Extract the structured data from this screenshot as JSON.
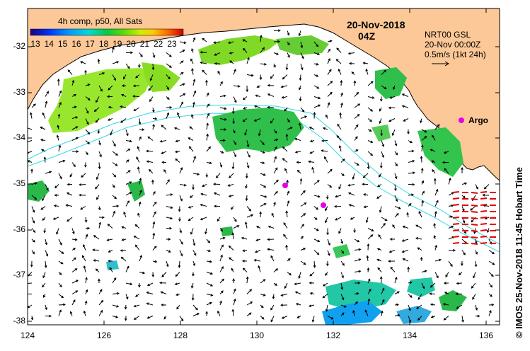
{
  "title": {
    "date": "20-Nov-2018",
    "time": "04Z"
  },
  "legend": {
    "title": "4h comp, p50, All Sats",
    "sst_ticks": [
      "13",
      "14",
      "15",
      "16",
      "17",
      "18",
      "19",
      "20",
      "21",
      "22",
      "23"
    ]
  },
  "current_key": {
    "line1": "NRT00 GSL",
    "line2": "20-Nov 00:00Z",
    "line3": "0.5m/s (1kt 24h)"
  },
  "argo_label": "Argo",
  "credit": "© IMOS 25-Nov-2018 11:45 Hobart Time",
  "axes": {
    "lon_ticks": [
      "124",
      "126",
      "128",
      "130",
      "132",
      "134",
      "136"
    ],
    "lat_ticks": [
      "-32",
      "-33",
      "-34",
      "-35",
      "-36",
      "-37",
      "-38"
    ]
  },
  "colors": {
    "land": "#fcc897",
    "coast": "#000000",
    "isobath": "#33d9e6",
    "argo": "#e600e6",
    "radar_vectors": "#e60000"
  },
  "icons": [
    "argo-float-marker",
    "current-vector-arrow",
    "sst-colorbar"
  ]
}
